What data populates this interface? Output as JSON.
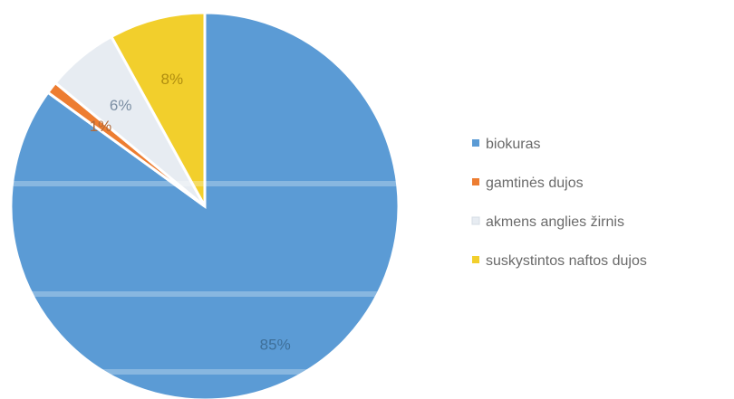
{
  "chart_data": {
    "type": "pie",
    "categories": [
      "biokuras",
      "gamtinės dujos",
      "akmens anglies žirnis",
      "suskystintos naftos dujos"
    ],
    "values": [
      85,
      1,
      6,
      8
    ],
    "value_labels": [
      "85%",
      "1%",
      "6%",
      "8%"
    ],
    "colors": [
      "#5b9bd5",
      "#ed7d31",
      "#e7ecf2",
      "#f2cf2c"
    ],
    "label_colors": [
      "#3e6f99",
      "#b06a3a",
      "#7b8ea3",
      "#b08e10"
    ],
    "title": "",
    "legend": {
      "placement": "right",
      "items": [
        "biokuras",
        "gamtinės dujos",
        "akmens anglies žirnis",
        "suskystintos naftos dujos"
      ]
    },
    "start_angle_deg": 0,
    "direction": "clockwise"
  }
}
